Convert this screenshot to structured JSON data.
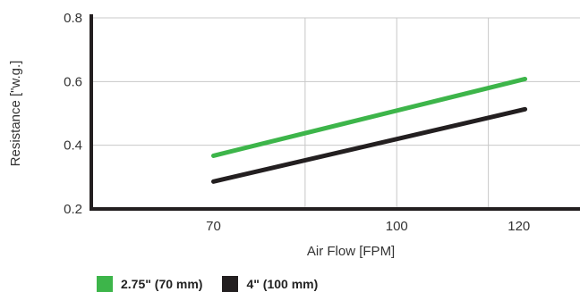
{
  "chart_data": {
    "type": "line",
    "title": "",
    "xlabel": "Air Flow [FPM]",
    "ylabel": "Resistance [\"w.g.]",
    "xlim": [
      50,
      130
    ],
    "ylim": [
      0.2,
      0.8
    ],
    "x_ticks": [
      70,
      100,
      120
    ],
    "x_tick_labels": [
      "70",
      "100",
      "120"
    ],
    "y_ticks": [
      0.2,
      0.4,
      0.6,
      0.8
    ],
    "y_tick_labels": [
      "0.2",
      "0.4",
      "0.6",
      "0.8"
    ],
    "x_gridlines": [
      85,
      100,
      115
    ],
    "grid": true,
    "legend_position": "bottom-left",
    "series": [
      {
        "name": "2.75\" (70 mm)",
        "color": "#3db54a",
        "x": [
          70,
          121
        ],
        "y": [
          0.367,
          0.608
        ]
      },
      {
        "name": "4\" (100 mm)",
        "color": "#231f20",
        "x": [
          70,
          121
        ],
        "y": [
          0.286,
          0.513
        ]
      }
    ]
  },
  "legend": {
    "items": [
      {
        "label": "2.75\" (70 mm)",
        "color": "#3db54a"
      },
      {
        "label": "4\" (100 mm)",
        "color": "#231f20"
      }
    ]
  }
}
